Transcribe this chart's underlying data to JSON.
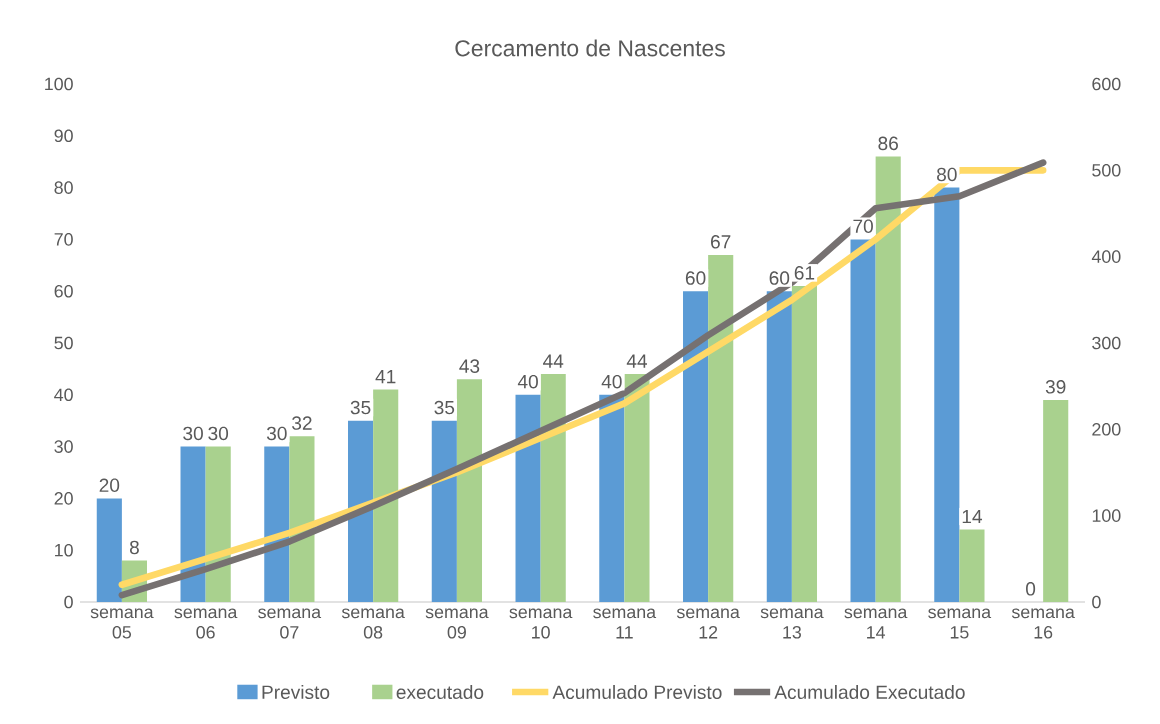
{
  "chart_data": {
    "type": "bar",
    "title": "Cercamento de Nascentes",
    "categories": [
      "semana 05",
      "semana 06",
      "semana 07",
      "semana 08",
      "semana 09",
      "semana 10",
      "semana 11",
      "semana 12",
      "semana 13",
      "semana 14",
      "semana 15",
      "semana 16"
    ],
    "series": [
      {
        "name": "Previsto",
        "color": "#5b9bd5",
        "values": [
          20,
          30,
          30,
          35,
          35,
          40,
          40,
          60,
          60,
          70,
          80,
          0
        ],
        "value_labels": [
          "20",
          "30",
          "30",
          "35",
          "35",
          "40",
          "40",
          "60",
          "60",
          "70",
          "80",
          "0"
        ]
      },
      {
        "name": "executado",
        "color": "#a9d18e",
        "values": [
          8,
          30,
          32,
          41,
          43,
          44,
          44,
          67,
          61,
          86,
          14,
          39
        ],
        "value_labels": [
          "8",
          "30",
          "32",
          "41",
          "43",
          "44",
          "44",
          "67",
          "61",
          "86",
          "14",
          "39"
        ]
      },
      {
        "name": "Acumulado Previsto",
        "type": "line",
        "axis": "y2",
        "color": "#ffd966",
        "values": [
          20,
          50,
          80,
          115,
          150,
          190,
          230,
          290,
          350,
          420,
          500,
          500
        ]
      },
      {
        "name": "Acumulado Executado",
        "type": "line",
        "axis": "y2",
        "color": "#767171",
        "values": [
          8,
          38,
          70,
          111,
          154,
          198,
          242,
          309,
          370,
          456,
          470,
          509
        ]
      }
    ],
    "ylim": [
      0,
      100
    ],
    "yticks": [
      0,
      10,
      20,
      30,
      40,
      50,
      60,
      70,
      80,
      90,
      100
    ],
    "y2lim": [
      0,
      600
    ],
    "y2ticks": [
      0,
      100,
      200,
      300,
      400,
      500,
      600
    ],
    "legend": "bottom"
  }
}
